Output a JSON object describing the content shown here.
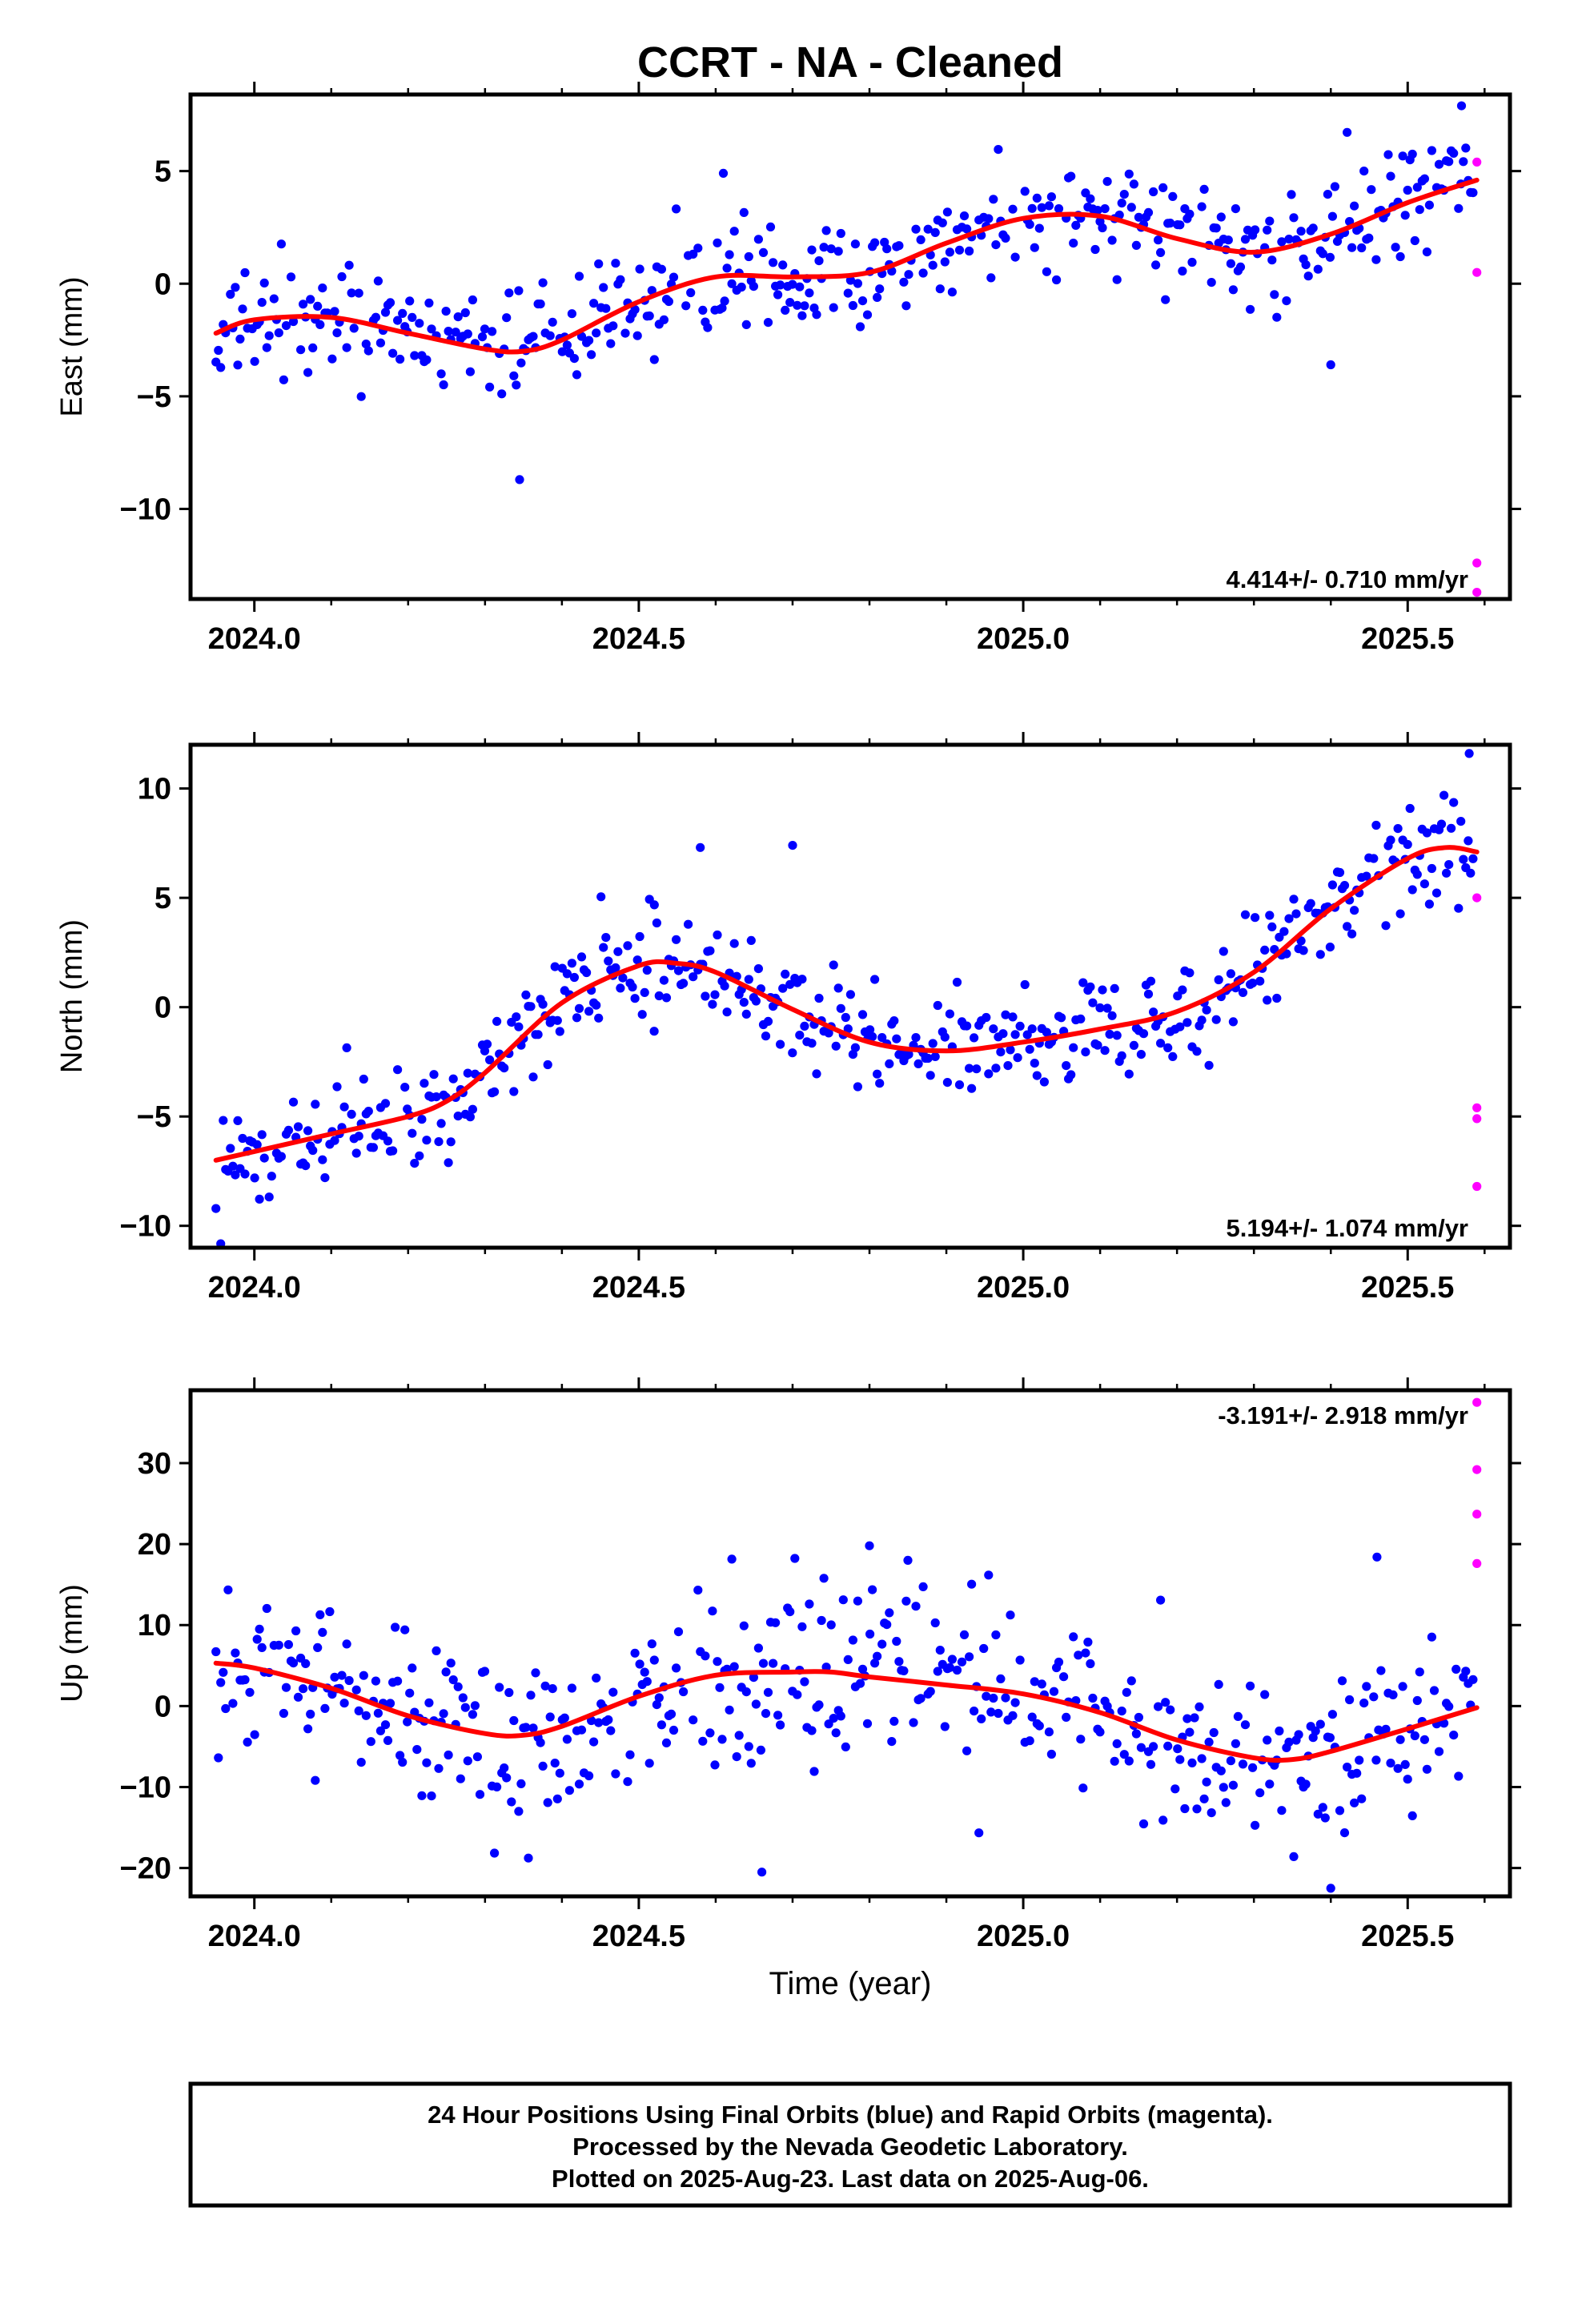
{
  "title": "CCRT  - NA - Cleaned",
  "xlabel": "Time (year)",
  "footer": {
    "line1": "24 Hour Positions Using Final Orbits (blue) and Rapid Orbits (magenta).",
    "line2": "Processed by the Nevada Geodetic Laboratory.",
    "line3": "Plotted on 2025-Aug-23. Last data on 2025-Aug-06."
  },
  "colors": {
    "final": "#0000ff",
    "rapid": "#ff00ff",
    "model": "#ff0000",
    "frame": "#000000"
  },
  "chart_data": [
    {
      "type": "scatter",
      "ylabel": "East (mm)",
      "xlim": [
        2023.917,
        2025.633
      ],
      "ylim": [
        -14.0,
        8.4
      ],
      "xticks": [
        2024.0,
        2024.5,
        2025.0,
        2025.5
      ],
      "xtick_labels": [
        "2024.0",
        "2024.5",
        "2025.0",
        "2025.5"
      ],
      "yticks": [
        -10,
        -5,
        0,
        5
      ],
      "ytick_labels": [
        "−10",
        "−5",
        "0",
        "5"
      ],
      "rate_label": "4.414+/- 0.710 mm/yr",
      "rate_position": "bottom-right",
      "model": {
        "x": [
          2023.95,
          2024.0,
          2024.1,
          2024.2,
          2024.3,
          2024.35,
          2024.4,
          2024.5,
          2024.6,
          2024.7,
          2024.8,
          2024.9,
          2025.0,
          2025.1,
          2025.2,
          2025.3,
          2025.4,
          2025.5,
          2025.59
        ],
        "y": [
          -2.2,
          -1.6,
          -1.5,
          -2.2,
          -2.9,
          -3.0,
          -2.5,
          -0.8,
          0.3,
          0.3,
          0.5,
          1.8,
          2.9,
          3.0,
          2.0,
          1.4,
          2.2,
          3.6,
          4.6
        ]
      },
      "series": [
        {
          "name": "Final Orbits",
          "orbit": "final",
          "x": [],
          "y": []
        },
        {
          "name": "Rapid Orbits",
          "orbit": "rapid",
          "x": [
            2025.59,
            2025.59,
            2025.59,
            2025.59
          ],
          "y": [
            5.4,
            0.5,
            -12.4,
            -13.7
          ]
        }
      ]
    },
    {
      "type": "scatter",
      "ylabel": "North (mm)",
      "xlim": [
        2023.917,
        2025.633
      ],
      "ylim": [
        -11.0,
        12.0
      ],
      "xticks": [
        2024.0,
        2024.5,
        2025.0,
        2025.5
      ],
      "xtick_labels": [
        "2024.0",
        "2024.5",
        "2025.0",
        "2025.5"
      ],
      "yticks": [
        -10,
        -5,
        0,
        5,
        10
      ],
      "ytick_labels": [
        "−10",
        "−5",
        "0",
        "5",
        "10"
      ],
      "rate_label": "5.194+/- 1.074 mm/yr",
      "rate_position": "bottom-right",
      "model": {
        "x": [
          2023.95,
          2024.0,
          2024.1,
          2024.2,
          2024.25,
          2024.3,
          2024.4,
          2024.5,
          2024.55,
          2024.6,
          2024.7,
          2024.8,
          2024.9,
          2025.0,
          2025.1,
          2025.2,
          2025.3,
          2025.4,
          2025.5,
          2025.55,
          2025.59
        ],
        "y": [
          -7.0,
          -6.6,
          -5.8,
          -5.0,
          -4.3,
          -3.0,
          0.2,
          1.9,
          2.0,
          1.6,
          -0.1,
          -1.6,
          -2.0,
          -1.6,
          -1.0,
          -0.2,
          1.6,
          4.5,
          6.8,
          7.3,
          7.1
        ]
      },
      "series": [
        {
          "name": "Final Orbits",
          "orbit": "final",
          "x": [],
          "y": []
        },
        {
          "name": "Rapid Orbits",
          "orbit": "rapid",
          "x": [
            2025.59,
            2025.59,
            2025.59,
            2025.59
          ],
          "y": [
            5.0,
            -4.6,
            -5.1,
            -8.2
          ]
        }
      ]
    },
    {
      "type": "scatter",
      "ylabel": "Up (mm)",
      "xlim": [
        2023.917,
        2025.633
      ],
      "ylim": [
        -23.5,
        39.0
      ],
      "xticks": [
        2024.0,
        2024.5,
        2025.0,
        2025.5
      ],
      "xtick_labels": [
        "2024.0",
        "2024.5",
        "2025.0",
        "2025.5"
      ],
      "yticks": [
        -20,
        -10,
        0,
        10,
        20,
        30
      ],
      "ytick_labels": [
        "−20",
        "−10",
        "0",
        "10",
        "20",
        "30"
      ],
      "rate_label": "-3.191+/- 2.918 mm/yr",
      "rate_position": "top-right",
      "model": {
        "x": [
          2023.95,
          2024.0,
          2024.1,
          2024.2,
          2024.3,
          2024.35,
          2024.4,
          2024.5,
          2024.6,
          2024.7,
          2024.75,
          2024.8,
          2024.9,
          2025.0,
          2025.1,
          2025.2,
          2025.3,
          2025.35,
          2025.4,
          2025.5,
          2025.59
        ],
        "y": [
          5.3,
          4.7,
          2.2,
          -1.2,
          -3.4,
          -3.6,
          -2.5,
          1.2,
          3.8,
          4.2,
          4.2,
          3.6,
          2.6,
          1.5,
          -0.8,
          -4.2,
          -6.4,
          -6.6,
          -5.6,
          -2.8,
          -0.2
        ]
      },
      "series": [
        {
          "name": "Final Orbits",
          "orbit": "final",
          "x": [],
          "y": []
        },
        {
          "name": "Rapid Orbits",
          "orbit": "rapid",
          "x": [
            2025.59,
            2025.59,
            2025.59,
            2025.59
          ],
          "y": [
            37.5,
            29.2,
            23.7,
            17.6
          ]
        }
      ]
    }
  ]
}
